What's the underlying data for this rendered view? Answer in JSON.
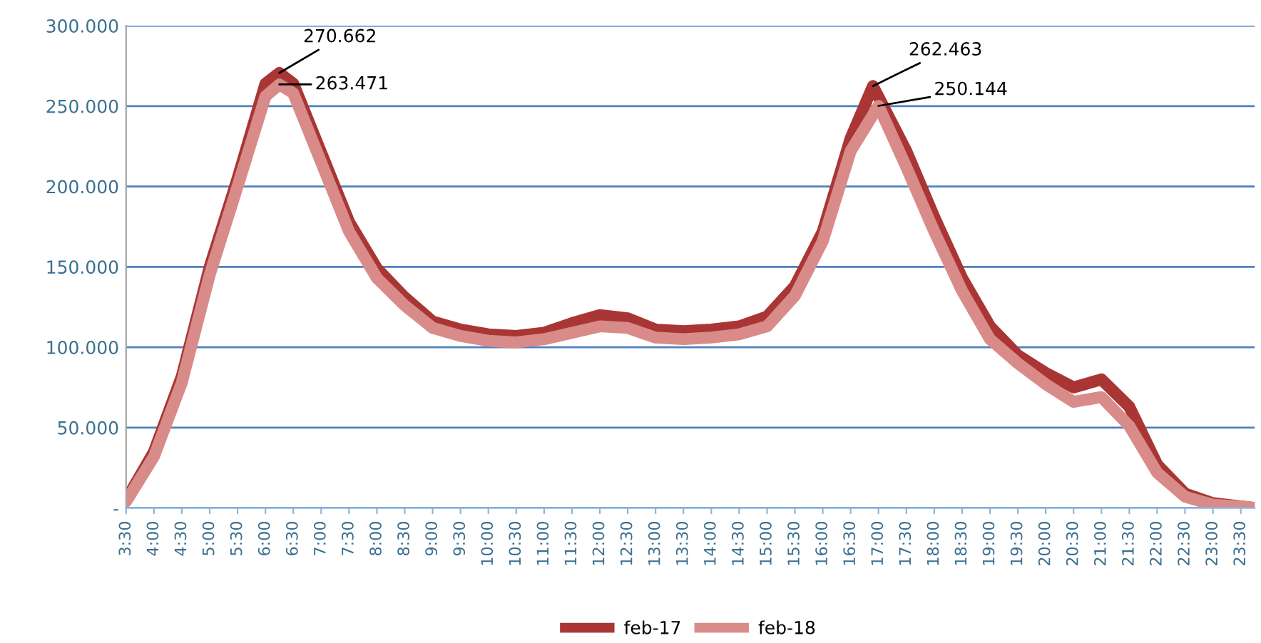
{
  "chart_data": {
    "type": "line",
    "x": [
      3.5,
      4,
      4.5,
      5,
      5.5,
      6,
      6.25,
      6.5,
      7,
      7.5,
      8,
      8.5,
      9,
      9.5,
      10,
      10.5,
      11,
      11.5,
      12,
      12.5,
      13,
      13.5,
      14,
      14.5,
      15,
      15.5,
      16,
      16.5,
      17,
      17.5,
      18,
      18.5,
      19,
      19.5,
      20,
      20.5,
      21,
      21.5,
      22,
      22.5,
      23,
      23.5,
      23.75
    ],
    "series": [
      {
        "name": "feb-17",
        "color": "#a93634",
        "x": [
          3.5,
          4,
          4.5,
          5,
          5.5,
          6,
          6.25,
          6.5,
          7,
          7.5,
          8,
          8.5,
          9,
          9.5,
          10,
          10.5,
          11,
          11.5,
          12,
          12.5,
          13,
          13.5,
          14,
          14.5,
          15,
          15.5,
          16,
          16.5,
          16.9,
          17.5,
          18,
          18.5,
          19,
          19.5,
          20,
          20.5,
          21,
          21.5,
          22,
          22.5,
          23,
          23.5,
          23.75
        ],
        "values": [
          5000,
          35000,
          82000,
          150000,
          205000,
          264000,
          270662,
          264000,
          221000,
          178000,
          149000,
          131000,
          116000,
          111000,
          108000,
          107000,
          109000,
          115000,
          120000,
          118000,
          111000,
          110000,
          111000,
          113000,
          119000,
          138000,
          172000,
          230000,
          262463,
          222000,
          181000,
          143000,
          113000,
          95000,
          84000,
          75000,
          80000,
          63000,
          27000,
          9000,
          3000,
          1000,
          0
        ]
      },
      {
        "name": "feb-18",
        "color": "#d98b89",
        "values": [
          4000,
          32000,
          78000,
          145000,
          200000,
          256000,
          263471,
          258000,
          215000,
          172000,
          143000,
          126000,
          112000,
          107000,
          104000,
          103000,
          105000,
          109000,
          113000,
          112000,
          106000,
          105000,
          106000,
          108000,
          113000,
          132000,
          166000,
          222000,
          250144,
          212000,
          172000,
          135000,
          105000,
          90000,
          77000,
          66000,
          69000,
          51000,
          22000,
          7000,
          2000,
          1000,
          0
        ]
      }
    ],
    "xlim": [
      3.5,
      23.75
    ],
    "xticks": [
      {
        "value": 3.5,
        "label": "3:30"
      },
      {
        "value": 4,
        "label": "4:00"
      },
      {
        "value": 4.5,
        "label": "4:30"
      },
      {
        "value": 5,
        "label": "5:00"
      },
      {
        "value": 5.5,
        "label": "5:30"
      },
      {
        "value": 6,
        "label": "6:00"
      },
      {
        "value": 6.5,
        "label": "6:30"
      },
      {
        "value": 7,
        "label": "7:00"
      },
      {
        "value": 7.5,
        "label": "7:30"
      },
      {
        "value": 8,
        "label": "8:00"
      },
      {
        "value": 8.5,
        "label": "8:30"
      },
      {
        "value": 9,
        "label": "9:00"
      },
      {
        "value": 9.5,
        "label": "9:30"
      },
      {
        "value": 10,
        "label": "10:00"
      },
      {
        "value": 10.5,
        "label": "10:30"
      },
      {
        "value": 11,
        "label": "11:00"
      },
      {
        "value": 11.5,
        "label": "11:30"
      },
      {
        "value": 12,
        "label": "12:00"
      },
      {
        "value": 12.5,
        "label": "12:30"
      },
      {
        "value": 13,
        "label": "13:00"
      },
      {
        "value": 13.5,
        "label": "13:30"
      },
      {
        "value": 14,
        "label": "14:00"
      },
      {
        "value": 14.5,
        "label": "14:30"
      },
      {
        "value": 15,
        "label": "15:00"
      },
      {
        "value": 15.5,
        "label": "15:30"
      },
      {
        "value": 16,
        "label": "16:00"
      },
      {
        "value": 16.5,
        "label": "16:30"
      },
      {
        "value": 17,
        "label": "17:00"
      },
      {
        "value": 17.5,
        "label": "17:30"
      },
      {
        "value": 18,
        "label": "18:00"
      },
      {
        "value": 18.5,
        "label": "18:30"
      },
      {
        "value": 19,
        "label": "19:00"
      },
      {
        "value": 19.5,
        "label": "19:30"
      },
      {
        "value": 20,
        "label": "20:00"
      },
      {
        "value": 20.5,
        "label": "20:30"
      },
      {
        "value": 21,
        "label": "21:00"
      },
      {
        "value": 21.5,
        "label": "21:30"
      },
      {
        "value": 22,
        "label": "22:00"
      },
      {
        "value": 22.5,
        "label": "22:30"
      },
      {
        "value": 23,
        "label": "23:00"
      },
      {
        "value": 23.5,
        "label": "23:30"
      }
    ],
    "ylim": [
      0,
      300000
    ],
    "yticks": [
      {
        "value": 0,
        "label": "-"
      },
      {
        "value": 50000,
        "label": "50.000"
      },
      {
        "value": 100000,
        "label": "100.000"
      },
      {
        "value": 150000,
        "label": "150.000"
      },
      {
        "value": 200000,
        "label": "200.000"
      },
      {
        "value": 250000,
        "label": "250.000"
      },
      {
        "value": 300000,
        "label": "300.000"
      }
    ],
    "annotations": [
      {
        "text": "270.662",
        "x": 6.25,
        "y": 270662
      },
      {
        "text": "263.471",
        "x": 6.25,
        "y": 263471
      },
      {
        "text": "262.463",
        "x": 16.9,
        "y": 262463
      },
      {
        "text": "250.144",
        "x": 17,
        "y": 250144
      }
    ],
    "grid": "y",
    "legend": "bottom",
    "marker": "none",
    "line_style": "solid"
  }
}
